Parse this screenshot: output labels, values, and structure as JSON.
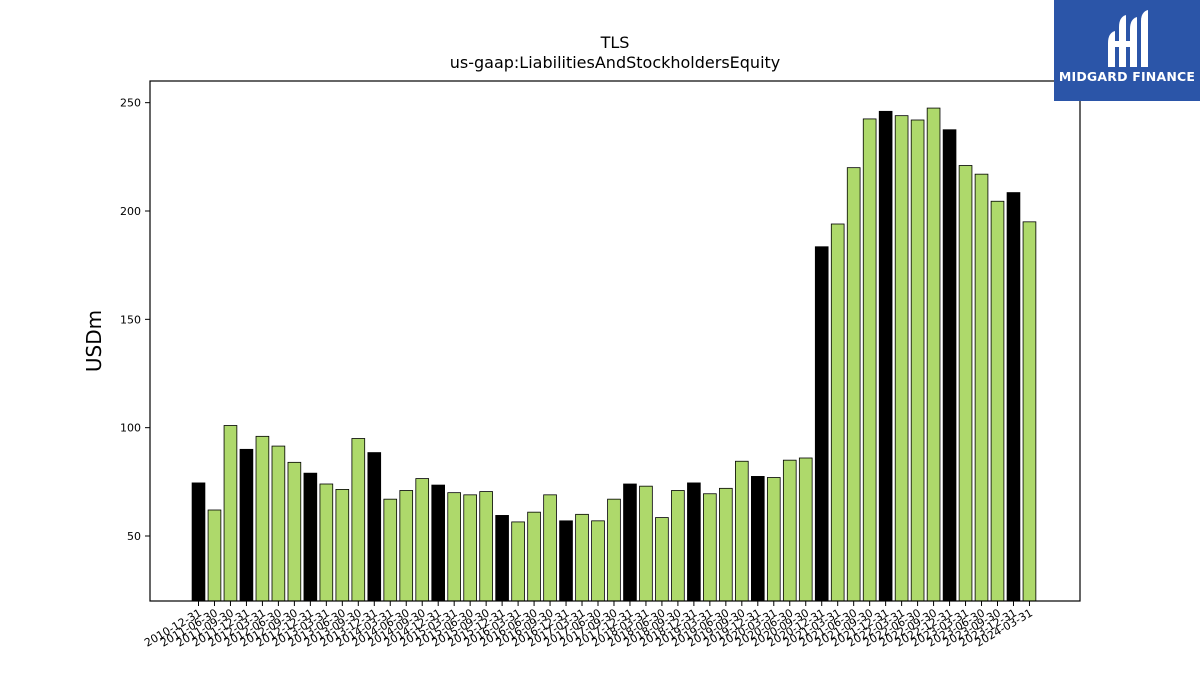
{
  "chart_data": {
    "type": "bar",
    "title": "TLS",
    "subtitle": "us-gaap:LiabilitiesAndStockholdersEquity",
    "xlabel": "",
    "ylabel": "USDm",
    "ylim": [
      20,
      260
    ],
    "yticks": [
      50,
      100,
      150,
      200,
      250
    ],
    "grid": false,
    "colors": {
      "q4": "#000000",
      "other": "#aed96b",
      "edge": "#000000"
    },
    "categories": [
      "2010-12-31",
      "2011-06-30",
      "2011-09-30",
      "2011-12-31",
      "2012-03-31",
      "2012-06-30",
      "2012-09-30",
      "2012-12-31",
      "2013-03-31",
      "2013-06-30",
      "2013-09-30",
      "2013-12-31",
      "2014-03-31",
      "2014-06-30",
      "2014-09-30",
      "2014-12-31",
      "2015-03-31",
      "2015-06-30",
      "2015-09-30",
      "2015-12-31",
      "2016-03-31",
      "2016-06-30",
      "2016-09-30",
      "2016-12-31",
      "2017-03-31",
      "2017-06-30",
      "2017-09-30",
      "2017-12-31",
      "2018-03-31",
      "2018-06-30",
      "2018-09-30",
      "2018-12-31",
      "2019-03-31",
      "2019-06-30",
      "2019-09-30",
      "2019-12-31",
      "2020-03-31",
      "2020-06-30",
      "2020-09-30",
      "2020-12-31",
      "2021-03-31",
      "2021-06-30",
      "2021-09-30",
      "2021-12-31",
      "2022-03-31",
      "2022-06-30",
      "2022-09-30",
      "2022-12-31",
      "2023-03-31",
      "2023-06-30",
      "2023-09-30",
      "2023-12-31",
      "2024-03-31"
    ],
    "values": [
      74.5,
      62,
      101,
      90,
      96,
      91.5,
      84,
      79,
      74,
      71.5,
      95,
      88.5,
      67,
      71,
      76.5,
      73.5,
      70,
      69,
      70.5,
      59.5,
      56.5,
      61,
      69,
      57,
      60,
      57,
      67,
      74,
      73,
      58.5,
      71,
      74.5,
      69.5,
      72,
      84.5,
      77.5,
      77,
      85,
      86,
      183.5,
      194,
      220,
      242.5,
      246,
      244,
      242,
      247.5,
      237.5,
      221,
      217,
      204.5,
      208.5,
      195
    ]
  },
  "logo": {
    "text": "MIDGARD FINANCE",
    "icon": "midgard-logo-icon",
    "background": "#2b55a8"
  }
}
